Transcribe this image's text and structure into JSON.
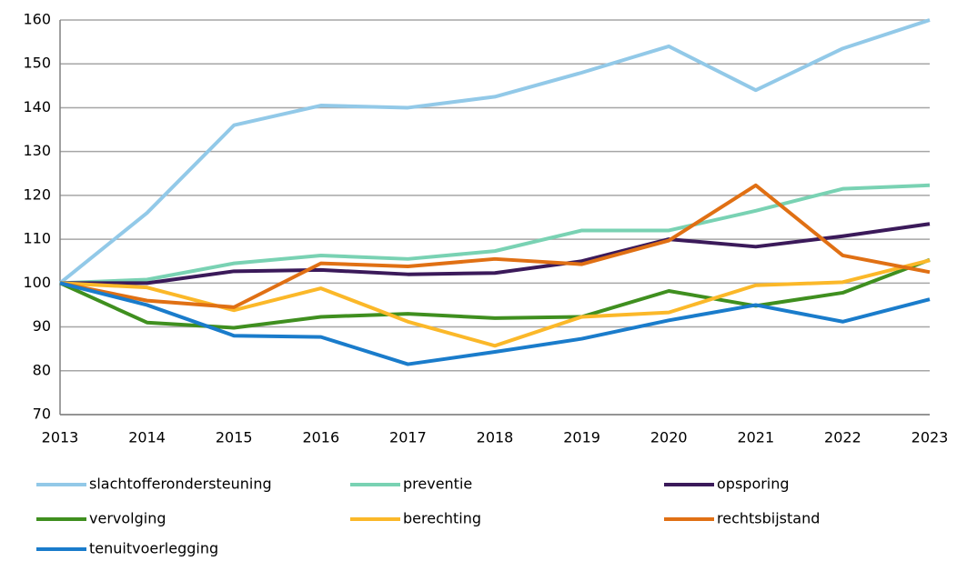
{
  "chart_data": {
    "type": "line",
    "categories": [
      "2013",
      "2014",
      "2015",
      "2016",
      "2017",
      "2018",
      "2019",
      "2020",
      "2021",
      "2022",
      "2023"
    ],
    "ylim": [
      70,
      160
    ],
    "yticks": [
      70,
      80,
      90,
      100,
      110,
      120,
      130,
      140,
      150,
      160
    ],
    "grid": true,
    "series": [
      {
        "name": "slachtofferondersteuning",
        "color": "#92c9e8",
        "values": [
          100,
          116,
          136,
          140.5,
          140,
          142.5,
          148,
          154,
          144,
          153.5,
          160
        ]
      },
      {
        "name": "preventie",
        "color": "#79d2b3",
        "values": [
          100,
          100.8,
          104.5,
          106.3,
          105.5,
          107.3,
          112,
          112,
          116.5,
          121.5,
          122.3
        ]
      },
      {
        "name": "opsporing",
        "color": "#3b1a5a",
        "values": [
          100,
          100,
          102.7,
          103,
          102,
          102.3,
          105,
          110,
          108.3,
          110.7,
          113.5
        ]
      },
      {
        "name": "vervolging",
        "color": "#3f8f1f",
        "values": [
          100,
          91,
          89.8,
          92.3,
          93,
          92,
          92.3,
          98.2,
          94.8,
          97.8,
          105.3
        ]
      },
      {
        "name": "berechting",
        "color": "#fbb829",
        "values": [
          100,
          99,
          93.8,
          98.8,
          91.2,
          85.7,
          92.3,
          93.3,
          99.5,
          100.2,
          105.2
        ]
      },
      {
        "name": "rechtsbijstand",
        "color": "#e07014",
        "values": [
          100,
          96,
          94.5,
          104.5,
          103.8,
          105.5,
          104.3,
          109.7,
          122.3,
          106.3,
          102.5
        ]
      },
      {
        "name": "tenuitvoerlegging",
        "color": "#1a7ccb",
        "values": [
          100,
          95,
          88,
          87.7,
          81.5,
          84.3,
          87.3,
          91.5,
          95,
          91.2,
          96.3
        ]
      }
    ]
  }
}
